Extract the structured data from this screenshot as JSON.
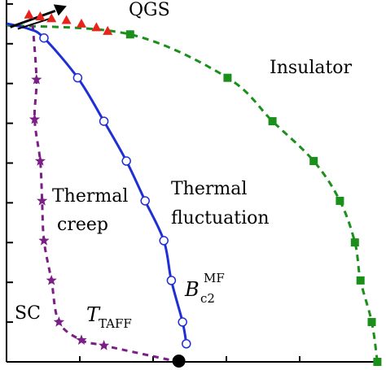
{
  "chart_data": {
    "type": "scatter",
    "title": "",
    "xlabel": "",
    "ylabel": "",
    "xlim": [
      0,
      1
    ],
    "ylim": [
      0,
      1
    ],
    "grid": false,
    "series": [
      {
        "name": "QGS",
        "kind": "markers",
        "marker": "triangle",
        "color": "#e8231b",
        "x": [
          0.06,
          0.09,
          0.12,
          0.16,
          0.2,
          0.24,
          0.27
        ],
        "y": [
          0.96,
          0.955,
          0.95,
          0.945,
          0.935,
          0.925,
          0.915
        ]
      },
      {
        "name": "Insulator",
        "kind": "markers-dashed-line",
        "marker": "square",
        "color": "#1a8f1a",
        "x": [
          0.33,
          0.59,
          0.71,
          0.82,
          0.89,
          0.93,
          0.945,
          0.975,
          0.99
        ],
        "y": [
          0.905,
          0.785,
          0.665,
          0.555,
          0.445,
          0.33,
          0.225,
          0.11,
          0.0
        ]
      },
      {
        "name": "B_c2^MF",
        "kind": "open-circles-solid-fit",
        "marker": "circle-open",
        "color": "#1f2fd6",
        "x": [
          0.1,
          0.19,
          0.26,
          0.32,
          0.37,
          0.42,
          0.44,
          0.47,
          0.48
        ],
        "y": [
          0.895,
          0.785,
          0.665,
          0.555,
          0.445,
          0.335,
          0.225,
          0.11,
          0.05
        ]
      },
      {
        "name": "T_TAFF",
        "kind": "markers-dashed-line",
        "marker": "star",
        "color": "#7b1f86",
        "x": [
          0.08,
          0.075,
          0.09,
          0.095,
          0.1,
          0.12,
          0.14,
          0.2,
          0.26,
          0.46
        ],
        "y": [
          0.78,
          0.67,
          0.555,
          0.445,
          0.335,
          0.225,
          0.11,
          0.06,
          0.045,
          0.0
        ]
      }
    ],
    "annotations": {
      "qgs": "QGS",
      "insulator": "Insulator",
      "thermal_fluctuation_line1": "Thermal",
      "thermal_fluctuation_line2": "fluctuation",
      "thermal_creep_line1": "Thermal",
      "thermal_creep_line2": "creep",
      "sc": "SC",
      "bc2_main": "B",
      "bc2_sub": "c2",
      "bc2_sup": "MF",
      "taff_main": "T",
      "taff_sub": "TAFF"
    },
    "colors": {
      "axis": "#000000",
      "qgs": "#e8231b",
      "insulator": "#1a8f1a",
      "bc2": "#1f2fd6",
      "taff": "#7b1f86",
      "critical_point": "#000000"
    }
  }
}
